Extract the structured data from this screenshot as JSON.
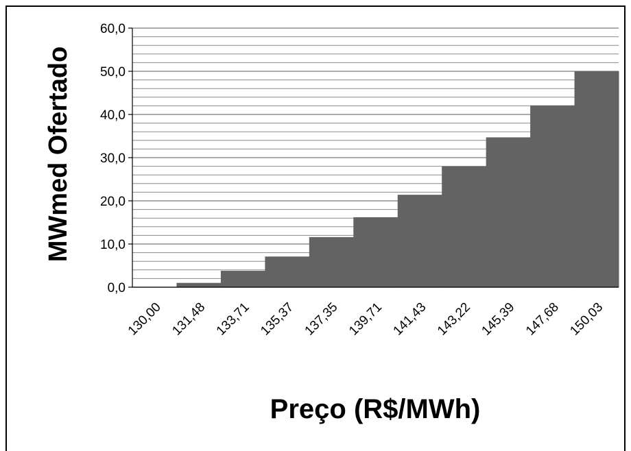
{
  "chart_data": {
    "type": "bar",
    "style": "step",
    "xlabel": "Preço (R$/MWh)",
    "ylabel": "MWmed Ofertado",
    "categories": [
      "130,00",
      "131,48",
      "133,71",
      "135,37",
      "137,35",
      "139,71",
      "141,43",
      "143,22",
      "145,39",
      "147,68",
      "150,03"
    ],
    "values": [
      0.0,
      1.0,
      3.8,
      7.1,
      11.6,
      16.2,
      21.4,
      28.0,
      34.7,
      42.1,
      50.0
    ],
    "ylim": [
      0,
      60
    ],
    "ytick_labels": [
      "0,0",
      "10,0",
      "20,0",
      "30,0",
      "40,0",
      "50,0",
      "60,0"
    ],
    "ytick_values": [
      0,
      10,
      20,
      30,
      40,
      50,
      60
    ],
    "minor_gridlines_per_major": 5,
    "grid": true,
    "bar_color": "#636363",
    "grid_color": "#8c8c8c"
  }
}
